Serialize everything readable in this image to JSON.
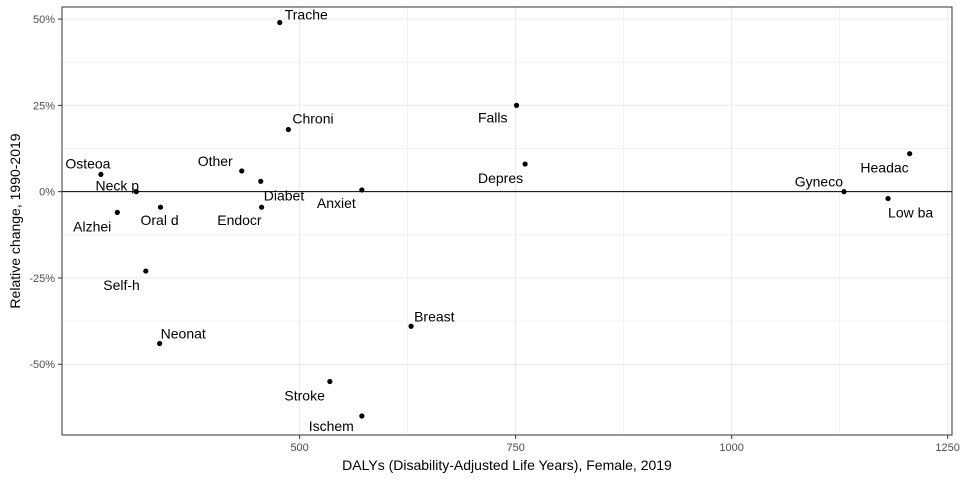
{
  "chart_data": {
    "type": "scatter",
    "xlabel": "DALYs (Disability-Adjusted Life Years), Female, 2019",
    "ylabel": "Relative change, 1990-2019",
    "xlim": [
      225,
      1255
    ],
    "ylim": [
      -0.705,
      0.535
    ],
    "x_ticks": [
      500,
      750,
      1000,
      1250
    ],
    "x_tick_labels": [
      "500",
      "750",
      "1000",
      "1250"
    ],
    "y_ticks": [
      -0.5,
      -0.25,
      0,
      0.25,
      0.5
    ],
    "y_tick_labels": [
      "-50%",
      "-25%",
      "0%",
      "25%",
      "50%"
    ],
    "grid": true,
    "reference_line_y": 0,
    "colors": {
      "point": "#000000",
      "grid": "#ebebeb",
      "panel_border": "#333333",
      "zero_line": "#000000"
    },
    "points": [
      {
        "label": "Trache",
        "x": 477,
        "y": 0.49,
        "anchor": "start",
        "dx": 5,
        "dy": -3
      },
      {
        "label": "Chroni",
        "x": 487,
        "y": 0.18,
        "anchor": "start",
        "dx": 4,
        "dy": -6
      },
      {
        "label": "Falls",
        "x": 751,
        "y": 0.25,
        "anchor": "end",
        "dx": -9,
        "dy": 17
      },
      {
        "label": "Osteoa",
        "x": 270,
        "y": 0.05,
        "anchor": "middle",
        "dx": -13,
        "dy": -6
      },
      {
        "label": "Other",
        "x": 433,
        "y": 0.06,
        "anchor": "end",
        "dx": -9,
        "dy": -5
      },
      {
        "label": "Diabet",
        "x": 455,
        "y": 0.03,
        "anchor": "start",
        "dx": 3,
        "dy": 19
      },
      {
        "label": "Depres",
        "x": 761,
        "y": 0.08,
        "anchor": "end",
        "dx": -2,
        "dy": 19
      },
      {
        "label": "Headac",
        "x": 1206,
        "y": 0.11,
        "anchor": "end",
        "dx": -1,
        "dy": 19
      },
      {
        "label": "Neck p",
        "x": 311,
        "y": 0.0,
        "anchor": "middle",
        "dx": -19,
        "dy": -1
      },
      {
        "label": "Anxiet",
        "x": 572,
        "y": 0.005,
        "anchor": "end",
        "dx": -6,
        "dy": 18
      },
      {
        "label": "Gyneco",
        "x": 1130,
        "y": 0.0,
        "anchor": "end",
        "dx": -1,
        "dy": -5
      },
      {
        "label": "Low ba",
        "x": 1181,
        "y": -0.02,
        "anchor": "start",
        "dx": 0,
        "dy": 19
      },
      {
        "label": "Oral d",
        "x": 339,
        "y": -0.045,
        "anchor": "start",
        "dx": -20,
        "dy": 18
      },
      {
        "label": "Endocr",
        "x": 456,
        "y": -0.045,
        "anchor": "end",
        "dx": 0,
        "dy": 18
      },
      {
        "label": "Alzhei",
        "x": 289,
        "y": -0.06,
        "anchor": "end",
        "dx": -6,
        "dy": 19
      },
      {
        "label": "Self-h",
        "x": 322,
        "y": -0.23,
        "anchor": "end",
        "dx": -6,
        "dy": 19
      },
      {
        "label": "Neonat",
        "x": 338,
        "y": -0.44,
        "anchor": "start",
        "dx": 1,
        "dy": -5
      },
      {
        "label": "Breast",
        "x": 629,
        "y": -0.39,
        "anchor": "start",
        "dx": 3,
        "dy": -5
      },
      {
        "label": "Stroke",
        "x": 535,
        "y": -0.55,
        "anchor": "end",
        "dx": -5,
        "dy": 19
      },
      {
        "label": "Ischem",
        "x": 572,
        "y": -0.65,
        "anchor": "end",
        "dx": -8,
        "dy": 15
      }
    ]
  }
}
